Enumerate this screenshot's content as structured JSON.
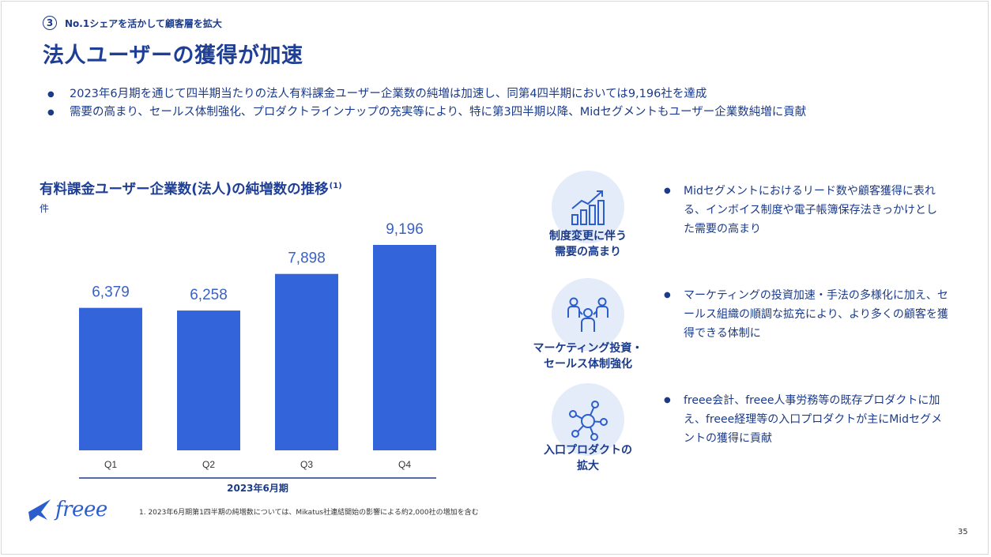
{
  "section": {
    "number": "3",
    "label": "No.1シェアを活かして顧客層を拡大"
  },
  "title": "法人ユーザーの獲得が加速",
  "bullets": [
    "2023年6月期を通じて四半期当たりの法人有料課金ユーザー企業数の純増は加速し、同第4四半期においては9,196社を達成",
    "需要の高まり、セールス体制強化、プロダクトラインナップの充実等により、特に第3四半期以降、Midセグメントもユーザー企業数純増に貢献"
  ],
  "chart_title": "有料課金ユーザー企業数(法人)の純増数の推移",
  "chart_title_note": "(1)",
  "chart_unit": "件",
  "chart_data": {
    "type": "bar",
    "categories": [
      "Q1",
      "Q2",
      "Q3",
      "Q4"
    ],
    "values": [
      6379,
      6258,
      7898,
      9196
    ],
    "value_labels": [
      "6,379",
      "6,258",
      "7,898",
      "9,196"
    ],
    "xlabel": "2023年6月期",
    "ylabel": "件",
    "ylim": [
      0,
      9196
    ],
    "grid": false,
    "bar_color": "#3464d9",
    "label_color": "#3a62c4"
  },
  "drivers": [
    {
      "icon": "growth-chart-icon",
      "label_lines": [
        "制度変更に伴う",
        "需要の高まり"
      ],
      "text": "Midセグメントにおけるリード数や顧客獲得に表れる、インボイス制度や電子帳簿保存法きっかけとした需要の高まり"
    },
    {
      "icon": "people-icon",
      "label_lines": [
        "マーケティング投資・",
        "セールス体制強化"
      ],
      "text": "マーケティングの投資加速・手法の多様化に加え、セールス組織の順調な拡充により、より多くの顧客を獲得できる体制に"
    },
    {
      "icon": "network-icon",
      "label_lines": [
        "入口プロダクトの",
        "拡大"
      ],
      "text": "freee会計、freee人事労務等の既存プロダクトに加え、freee経理等の入口プロダクトが主にMidセグメントの獲得に貢献"
    }
  ],
  "footnote": "1. 2023年6月期第1四半期の純増数については、Mikatus社連結開始の影響による約2,000社の増加を含む",
  "logo_text": "freee",
  "page_number": "35",
  "colors": {
    "brand": "#2c5dcc",
    "text": "#1a3a8a",
    "icon_bg": "#e4ecfa"
  }
}
